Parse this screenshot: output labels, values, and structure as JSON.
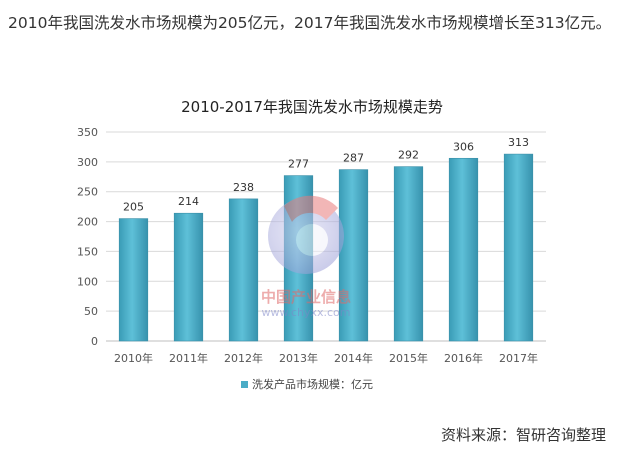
{
  "intro_text": "2010年我国洗发水市场规模为205亿元，2017年我国洗发水市场规模增长至313亿元。",
  "source_text": "资料来源：智研咨询整理",
  "watermark": {
    "text_cn": "中国产业信息",
    "text_url": "www.chyxx.com"
  },
  "chart_data": {
    "type": "bar",
    "title": "2010-2017年我国洗发水市场规模走势",
    "categories": [
      "2010年",
      "2011年",
      "2012年",
      "2013年",
      "2014年",
      "2015年",
      "2016年",
      "2017年"
    ],
    "series": [
      {
        "name": "洗发产品市场规模：亿元",
        "values": [
          205,
          214,
          238,
          277,
          287,
          292,
          306,
          313
        ],
        "color": "#4bacc6"
      }
    ],
    "ylim": [
      0,
      350
    ],
    "yticks": [
      0,
      50,
      100,
      150,
      200,
      250,
      300,
      350
    ],
    "grid": true,
    "legend_position": "bottom",
    "data_labels": true
  }
}
